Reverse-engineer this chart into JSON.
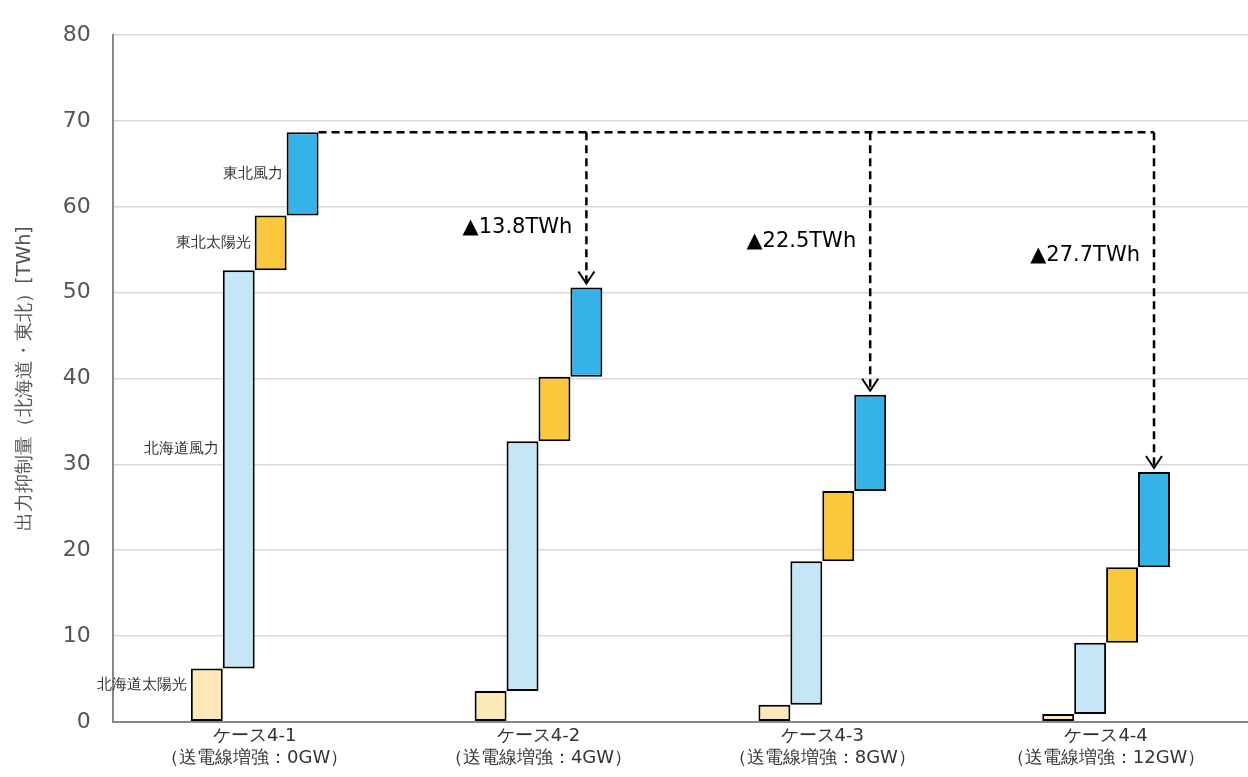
{
  "chart_data": {
    "type": "bar",
    "ylabel": "出力抑制量（北海道・東北）[TWh]",
    "categories": [
      "ケース4-1\n（送電線増強：0GW）",
      "ケース4-2\n（送電線増強：4GW）",
      "ケース4-3\n（送電線増強：8GW）",
      "ケース4-4\n（送電線増強：12GW）"
    ],
    "series": [
      {
        "name": "北海道太陽光",
        "color": "#fde9b8",
        "values": [
          6.2,
          3.6,
          2.0,
          0.9
        ],
        "base": [
          0,
          0,
          0,
          0
        ]
      },
      {
        "name": "北海道風力",
        "color": "#c5e6f7",
        "values": [
          46.4,
          29.1,
          16.7,
          8.3
        ],
        "base": [
          6.2,
          3.6,
          2.0,
          0.9
        ]
      },
      {
        "name": "東北太陽光",
        "color": "#fbc73c",
        "values": [
          6.4,
          7.5,
          8.2,
          8.8
        ],
        "base": [
          52.6,
          32.7,
          18.7,
          9.2
        ]
      },
      {
        "name": "東北風力",
        "color": "#35b2e8",
        "values": [
          9.7,
          10.4,
          11.2,
          11.1
        ],
        "base": [
          59.0,
          40.2,
          26.9,
          18.0
        ]
      }
    ],
    "ylim": [
      0,
      80
    ],
    "yticks": [
      0,
      10,
      20,
      30,
      40,
      50,
      60,
      70,
      80
    ],
    "grid": "y",
    "legend": false,
    "ref_lines": [
      {
        "axis": "y",
        "value": 68.7,
        "line_style": "dashed",
        "color": "#000000"
      }
    ],
    "annotations": [
      "▲13.8TWh",
      "▲22.5TWh",
      "▲27.7TWh"
    ]
  }
}
